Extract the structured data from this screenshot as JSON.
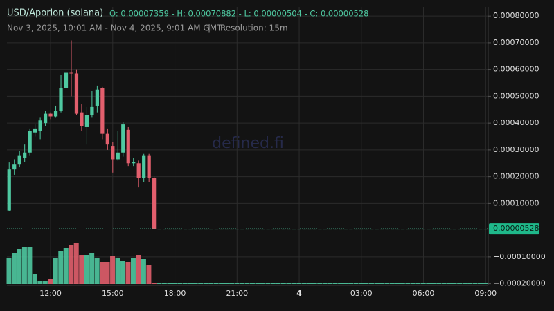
{
  "chart_data": {
    "type": "candlestick",
    "title": "USD/Aporion (solana)",
    "ohlc_summary": "O: 0.00007359 - H: 0.00070882 - L: 0.00000504 - C: 0.00000528",
    "date_range": "Nov 3, 2025, 10:01 AM - Nov 4, 2025, 9:01 AM GMT",
    "resolution": "Resolution: 15m",
    "watermark": "defined.fi",
    "up_color": "#4fc9a1",
    "down_color": "#e25f6d",
    "grid": true,
    "x": [
      "10:00",
      "10:15",
      "10:30",
      "10:45",
      "11:00",
      "11:15",
      "11:30",
      "11:45",
      "12:00",
      "12:15",
      "12:30",
      "12:45",
      "13:00",
      "13:15",
      "13:30",
      "13:45",
      "14:00",
      "14:15",
      "14:30",
      "14:45",
      "15:00",
      "15:15",
      "15:30",
      "15:45",
      "16:00",
      "16:15",
      "16:30",
      "16:45",
      "17:00",
      "17:15",
      "17:30",
      "17:45",
      "18:00",
      "18:15",
      "18:30",
      "18:45",
      "19:00",
      "19:15",
      "19:30",
      "19:45",
      "20:00",
      "20:15",
      "20:30",
      "20:45",
      "21:00",
      "21:15",
      "21:30",
      "21:45",
      "22:00",
      "22:15",
      "22:30",
      "22:45",
      "23:00",
      "23:15",
      "23:30",
      "23:45",
      "00:00",
      "00:15",
      "00:30",
      "00:45",
      "01:00",
      "01:15",
      "01:30",
      "01:45",
      "02:00",
      "02:15",
      "02:30",
      "02:45",
      "03:00",
      "03:15",
      "03:30",
      "03:45",
      "04:00",
      "04:15",
      "04:30",
      "04:45",
      "05:00",
      "05:15",
      "05:30",
      "05:45",
      "06:00",
      "06:15",
      "06:30",
      "06:45",
      "07:00",
      "07:15",
      "07:30",
      "07:45",
      "08:00",
      "08:15",
      "08:30",
      "08:45",
      "09:00"
    ],
    "open": [
      7.359e-05,
      0.000227,
      0.000245,
      0.00027,
      0.00029,
      0.000365,
      0.00037,
      0.0004,
      0.000435,
      0.000425,
      0.000445,
      0.00053,
      0.00059,
      0.000585,
      0.00044,
      0.000385,
      0.00043,
      0.000465,
      0.00053,
      0.00036,
      0.000315,
      0.000265,
      0.00029,
      0.000375,
      0.00025,
      0.00025,
      0.000195,
      0.00028,
      0.000195,
      5.28e-06,
      5.28e-06,
      5.28e-06,
      5.28e-06,
      5.28e-06,
      5.28e-06,
      5.28e-06,
      5.28e-06,
      5.28e-06,
      5.28e-06,
      5.28e-06,
      5.28e-06,
      5.28e-06,
      5.28e-06,
      5.28e-06,
      5.28e-06,
      5.28e-06,
      5.28e-06,
      5.28e-06,
      5.28e-06,
      5.28e-06,
      5.28e-06,
      5.28e-06,
      5.28e-06,
      5.28e-06,
      5.28e-06,
      5.28e-06,
      5.28e-06,
      5.28e-06,
      5.28e-06,
      5.28e-06,
      5.28e-06,
      5.28e-06,
      5.28e-06,
      5.28e-06,
      5.28e-06,
      5.28e-06,
      5.28e-06,
      5.28e-06,
      5.28e-06,
      5.28e-06,
      5.28e-06,
      5.28e-06,
      5.28e-06,
      5.28e-06,
      5.28e-06,
      5.28e-06,
      5.28e-06,
      5.28e-06,
      5.28e-06,
      5.28e-06,
      5.28e-06,
      5.28e-06,
      5.28e-06,
      5.28e-06,
      5.28e-06,
      5.28e-06,
      5.28e-06,
      5.28e-06,
      5.28e-06,
      5.28e-06,
      5.28e-06,
      5.28e-06,
      5.28e-06
    ],
    "high": [
      0.000253,
      0.000265,
      0.000295,
      0.00032,
      0.00038,
      0.000395,
      0.00042,
      0.000445,
      0.00044,
      0.000465,
      0.00058,
      0.00064,
      0.00070882,
      0.0006,
      0.00047,
      0.00046,
      0.00052,
      0.00054,
      0.000535,
      0.00038,
      0.00033,
      0.00037,
      0.000405,
      0.000385,
      0.00027,
      0.00026,
      0.000285,
      0.000285,
      0.0002,
      5.28e-06,
      5.28e-06,
      5.28e-06,
      5.28e-06,
      5.28e-06,
      5.28e-06,
      5.28e-06,
      5.28e-06,
      5.28e-06,
      5.28e-06,
      5.28e-06,
      5.28e-06,
      5.28e-06,
      5.28e-06,
      5.28e-06,
      5.28e-06,
      5.28e-06,
      5.28e-06,
      5.28e-06,
      5.28e-06,
      5.28e-06,
      5.28e-06,
      5.28e-06,
      5.28e-06,
      5.28e-06,
      5.28e-06,
      5.28e-06,
      5.28e-06,
      5.28e-06,
      5.28e-06,
      5.28e-06,
      5.28e-06,
      5.28e-06,
      5.28e-06,
      5.28e-06,
      5.28e-06,
      5.28e-06,
      5.28e-06,
      5.28e-06,
      5.28e-06,
      5.28e-06,
      5.28e-06,
      5.28e-06,
      5.28e-06,
      5.28e-06,
      5.28e-06,
      5.28e-06,
      5.28e-06,
      5.28e-06,
      5.28e-06,
      5.28e-06,
      5.28e-06,
      5.28e-06,
      5.28e-06,
      5.28e-06,
      5.28e-06,
      5.28e-06,
      5.28e-06,
      5.28e-06,
      5.28e-06,
      5.28e-06,
      5.28e-06,
      5.28e-06,
      5.28e-06
    ],
    "low": [
      7e-05,
      0.000207,
      0.000235,
      0.000255,
      0.00028,
      0.00035,
      0.00034,
      0.00039,
      0.000415,
      0.00042,
      0.00044,
      0.00047,
      0.0005,
      0.00043,
      0.00037,
      0.00032,
      0.00042,
      0.00044,
      0.00034,
      0.0003,
      0.000215,
      0.00026,
      0.000275,
      0.00024,
      0.00024,
      0.00016,
      0.00018,
      0.00018,
      5.04e-06,
      5.28e-06,
      5.28e-06,
      5.28e-06,
      5.28e-06,
      5.28e-06,
      5.28e-06,
      5.28e-06,
      5.28e-06,
      5.28e-06,
      5.28e-06,
      5.28e-06,
      5.28e-06,
      5.28e-06,
      5.28e-06,
      5.28e-06,
      5.28e-06,
      5.28e-06,
      5.28e-06,
      5.28e-06,
      5.28e-06,
      5.28e-06,
      5.28e-06,
      5.28e-06,
      5.28e-06,
      5.28e-06,
      5.28e-06,
      5.28e-06,
      5.28e-06,
      5.28e-06,
      5.28e-06,
      5.28e-06,
      5.28e-06,
      5.28e-06,
      5.28e-06,
      5.28e-06,
      5.28e-06,
      5.28e-06,
      5.28e-06,
      5.28e-06,
      5.28e-06,
      5.28e-06,
      5.28e-06,
      5.28e-06,
      5.28e-06,
      5.28e-06,
      5.28e-06,
      5.28e-06,
      5.28e-06,
      5.28e-06,
      5.28e-06,
      5.28e-06,
      5.28e-06,
      5.28e-06,
      5.28e-06,
      5.28e-06,
      5.28e-06,
      5.28e-06,
      5.28e-06,
      5.28e-06,
      5.28e-06,
      5.28e-06,
      5.28e-06,
      5.28e-06,
      5.28e-06
    ],
    "close": [
      0.000227,
      0.000245,
      0.00028,
      0.00029,
      0.00037,
      0.00038,
      0.00041,
      0.000435,
      0.000425,
      0.000445,
      0.00053,
      0.00059,
      0.000585,
      0.000435,
      0.00039,
      0.00043,
      0.00046,
      0.000525,
      0.00036,
      0.00032,
      0.000265,
      0.00029,
      0.000395,
      0.00025,
      0.000255,
      0.000195,
      0.00028,
      0.000195,
      5.3e-06,
      5.28e-06,
      5.28e-06,
      5.28e-06,
      5.28e-06,
      5.28e-06,
      5.28e-06,
      5.28e-06,
      5.28e-06,
      5.28e-06,
      5.28e-06,
      5.28e-06,
      5.28e-06,
      5.28e-06,
      5.28e-06,
      5.28e-06,
      5.28e-06,
      5.28e-06,
      5.28e-06,
      5.28e-06,
      5.28e-06,
      5.28e-06,
      5.28e-06,
      5.28e-06,
      5.28e-06,
      5.28e-06,
      5.28e-06,
      5.28e-06,
      5.28e-06,
      5.28e-06,
      5.28e-06,
      5.28e-06,
      5.28e-06,
      5.28e-06,
      5.28e-06,
      5.28e-06,
      5.28e-06,
      5.28e-06,
      5.28e-06,
      5.28e-06,
      5.28e-06,
      5.28e-06,
      5.28e-06,
      5.28e-06,
      5.28e-06,
      5.28e-06,
      5.28e-06,
      5.28e-06,
      5.28e-06,
      5.28e-06,
      5.28e-06,
      5.28e-06,
      5.28e-06,
      5.28e-06,
      5.28e-06,
      5.28e-06,
      5.28e-06,
      5.28e-06,
      5.28e-06,
      5.28e-06,
      5.28e-06,
      5.28e-06,
      5.28e-06,
      5.28e-06,
      5.28e-06
    ],
    "volume": [
      37,
      45,
      50,
      54,
      54,
      15,
      5,
      5,
      7,
      38,
      48,
      52,
      56,
      60,
      42,
      42,
      45,
      38,
      32,
      32,
      40,
      38,
      34,
      32,
      38,
      42,
      36,
      28,
      2,
      1,
      1,
      1,
      1,
      1,
      1,
      1,
      1,
      1,
      1,
      1,
      1,
      1,
      1,
      1,
      1,
      1,
      1,
      1,
      1,
      1,
      1,
      1,
      1,
      1,
      1,
      1,
      1,
      1,
      1,
      1,
      1,
      1,
      1,
      1,
      1,
      1,
      1,
      1,
      1,
      1,
      1,
      1,
      1,
      1,
      1,
      1,
      1,
      1,
      1,
      1,
      1,
      1,
      1,
      1,
      1,
      1,
      1,
      1,
      1,
      1,
      1,
      1,
      1
    ],
    "ylim": [
      -0.000201,
      0.000834
    ],
    "yticks": [
      {
        "value": 0.0008,
        "label": "0.00080000"
      },
      {
        "value": 0.0007,
        "label": "0.00070000"
      },
      {
        "value": 0.0006,
        "label": "0.00060000"
      },
      {
        "value": 0.0005,
        "label": "0.00050000"
      },
      {
        "value": 0.0004,
        "label": "0.00040000"
      },
      {
        "value": 0.0003,
        "label": "0.00030000"
      },
      {
        "value": 0.0002,
        "label": "0.00020000"
      },
      {
        "value": 0.0001,
        "label": "0.00010000"
      },
      {
        "value": -0.0001,
        "label": "−0.00010000"
      },
      {
        "value": -0.0002,
        "label": "−0.00020000"
      }
    ],
    "xticks": [
      {
        "value": "12:00",
        "label": "12:00"
      },
      {
        "value": "15:00",
        "label": "15:00"
      },
      {
        "value": "18:00",
        "label": "18:00"
      },
      {
        "value": "21:00",
        "label": "21:00"
      },
      {
        "value": "00:00",
        "label": "4"
      },
      {
        "value": "03:00",
        "label": "03:00"
      },
      {
        "value": "06:00",
        "label": "06:00"
      },
      {
        "value": "09:00",
        "label": "09:00"
      }
    ]
  }
}
